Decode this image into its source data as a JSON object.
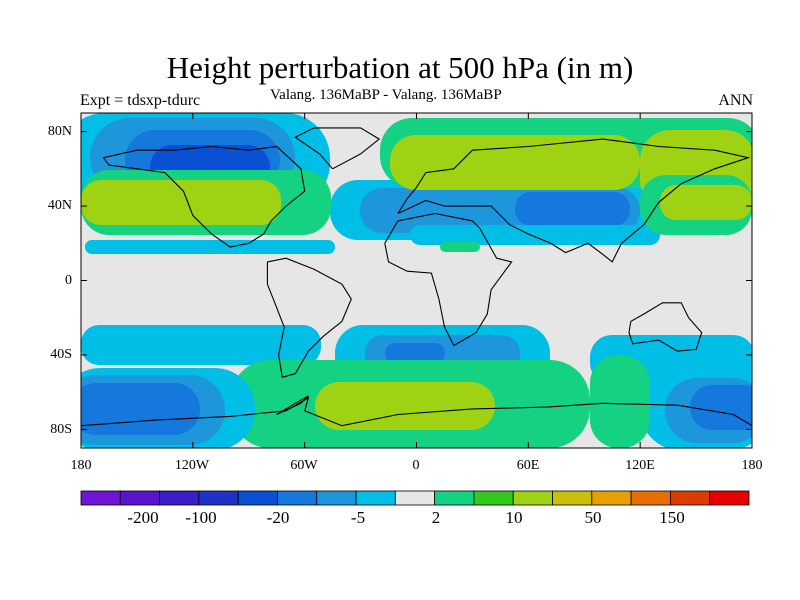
{
  "title": "Height perturbation at 500 hPa (in m)",
  "experiment_label": "Expt = tdsxp-tdurc",
  "comparison_label": "Valang. 136MaBP - Valang.  136MaBP",
  "season_label": "ANN",
  "map": {
    "projection": "cylindrical-equidistant",
    "lon_range": [
      -180,
      180
    ],
    "lat_range": [
      -90,
      90
    ],
    "lat_ticks": [
      {
        "value": 80,
        "label": "80N"
      },
      {
        "value": 40,
        "label": "40N"
      },
      {
        "value": 0,
        "label": "0"
      },
      {
        "value": -40,
        "label": "40S"
      },
      {
        "value": -80,
        "label": "80S"
      }
    ],
    "lon_ticks": [
      {
        "value": -180,
        "label": "180"
      },
      {
        "value": -120,
        "label": "120W"
      },
      {
        "value": -60,
        "label": "60W"
      },
      {
        "value": 0,
        "label": "0"
      },
      {
        "value": 60,
        "label": "60E"
      },
      {
        "value": 120,
        "label": "120E"
      },
      {
        "value": 180,
        "label": "180"
      }
    ],
    "background_color": "#e6e6e6"
  },
  "colorbar": {
    "colors": [
      "#7014d8",
      "#5a14d0",
      "#3c1ec8",
      "#1e32c8",
      "#0a50d2",
      "#1478dc",
      "#1e96dc",
      "#00bee6",
      "#e6e6e6",
      "#14d282",
      "#32c81e",
      "#a0d214",
      "#cdbe0a",
      "#e6a000",
      "#e66e00",
      "#dc3c00",
      "#e60000"
    ],
    "labels": [
      {
        "boundary": 1,
        "text": "-200"
      },
      {
        "boundary": 3,
        "text": "-100"
      },
      {
        "boundary": 5,
        "text": "-20"
      },
      {
        "boundary": 7,
        "text": "-5"
      },
      {
        "boundary": 9,
        "text": "2"
      },
      {
        "boundary": 11,
        "text": "10"
      },
      {
        "boundary": 13,
        "text": "50"
      },
      {
        "boundary": 15,
        "text": "150"
      }
    ]
  }
}
